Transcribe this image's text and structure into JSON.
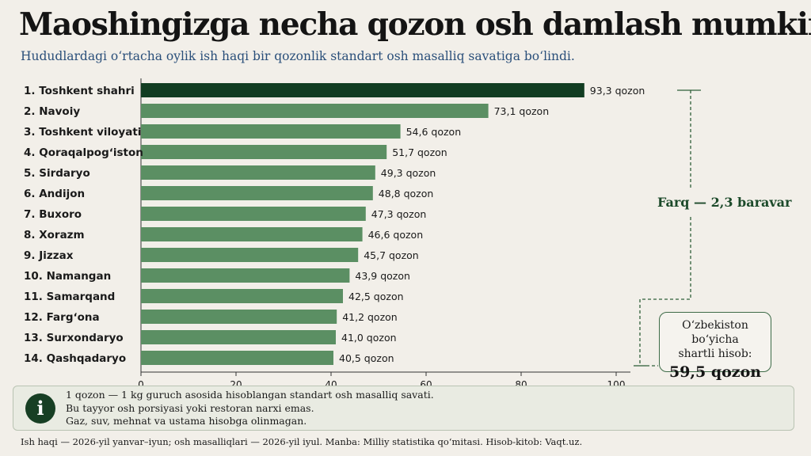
{
  "title": "Maoshingizga necha qozon osh damlash mumkin?",
  "subtitle": "Hududlardagi oʻrtacha oylik ish haqi bir qozonlik standart osh masalliq savatiga boʻlindi.",
  "chart_data": {
    "type": "bar",
    "orientation": "horizontal",
    "categories": [
      "1. Toshkent shahri",
      "2. Navoiy",
      "3. Toshkent viloyati",
      "4. Qoraqalpogʻiston",
      "5. Sirdaryo",
      "6. Andijon",
      "7. Buxoro",
      "8. Xorazm",
      "9. Jizzax",
      "10. Namangan",
      "11. Samarqand",
      "12. Fargʻona",
      "13. Surxondaryo",
      "14. Qashqadaryo"
    ],
    "values": [
      93.3,
      73.1,
      54.6,
      51.7,
      49.3,
      48.8,
      47.3,
      46.6,
      45.7,
      43.9,
      42.5,
      41.2,
      41.0,
      40.5
    ],
    "value_labels": [
      "93,3 qozon",
      "73,1 qozon",
      "54,6 qozon",
      "51,7 qozon",
      "49,3 qozon",
      "48,8 qozon",
      "47,3 qozon",
      "46,6 qozon",
      "45,7 qozon",
      "43,9 qozon",
      "42,5 qozon",
      "41,2 qozon",
      "41,0 qozon",
      "40,5 qozon"
    ],
    "xlim": [
      0,
      100
    ],
    "xticks": [
      "0",
      "20",
      "40",
      "60",
      "80",
      "100"
    ],
    "highlight_color": "#123d22",
    "bar_color": "#5b8f63",
    "annotations": {
      "difference": "Farq — 2,3 baravar",
      "national_line1": "Oʻzbekiston boʻyicha",
      "national_line2": "shartli hisob:",
      "national_value": "59,5 qozon"
    }
  },
  "note": {
    "icon": "info-icon",
    "lines": [
      "1 qozon — 1 kg guruch asosida hisoblangan standart osh masalliq savati.",
      "Bu tayyor osh porsiyasi yoki restoran narxi emas.",
      "Gaz, suv, mehnat va ustama hisobga olinmagan."
    ]
  },
  "footer": "Ish haqi — 2026-yil yanvar–iyun; osh masalliqlari — 2026-yil iyul. Manba: Milliy statistika qoʻmitasi. Hisob-kitob: Vaqt.uz."
}
